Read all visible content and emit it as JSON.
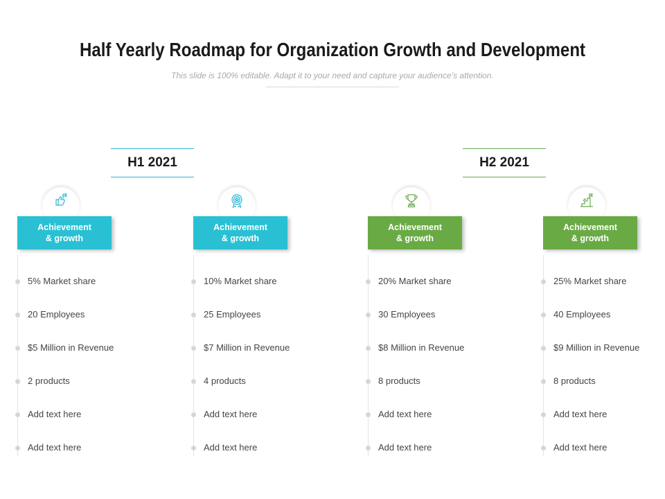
{
  "title": "Half Yearly Roadmap for Organization Growth and Development",
  "subtitle": "This slide is 100% editable. Adapt it to your need and capture your audience’s attention.",
  "periods": [
    {
      "label": "H1 2021",
      "color": "#29b6d6"
    },
    {
      "label": "H2 2021",
      "color": "#6aa84f"
    }
  ],
  "columns": [
    {
      "icon": "thumbs-up-flag-icon",
      "label_line1": "Achievement",
      "label_line2": "& growth",
      "items": [
        "5% Market share",
        "20 Employees",
        "$5 Million in Revenue",
        "2 products",
        "Add text here",
        "Add text here"
      ]
    },
    {
      "icon": "award-medal-icon",
      "label_line1": "Achievement",
      "label_line2": "& growth",
      "items": [
        "10% Market share",
        "25 Employees",
        "$7 Million in Revenue",
        "4 products",
        "Add text here",
        "Add text here"
      ]
    },
    {
      "icon": "trophy-icon",
      "label_line1": "Achievement",
      "label_line2": "& growth",
      "items": [
        "20% Market share",
        "30 Employees",
        "$8 Million in Revenue",
        "8 products",
        "Add text here",
        "Add text here"
      ]
    },
    {
      "icon": "growth-stairs-flag-icon",
      "label_line1": "Achievement",
      "label_line2": "& growth",
      "items": [
        "25% Market share",
        "40 Employees",
        "$9 Million in Revenue",
        "8 products",
        "Add text here",
        "Add text here"
      ]
    }
  ],
  "colors": {
    "blue": "#29c0d4",
    "green": "#6aaa45"
  }
}
